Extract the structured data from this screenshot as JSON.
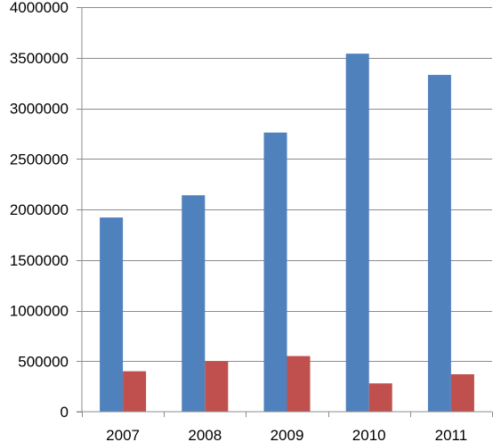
{
  "chart_data": {
    "type": "bar",
    "categories": [
      "2007",
      "2008",
      "2009",
      "2010",
      "2011"
    ],
    "series": [
      {
        "color": "#4F81BD",
        "values": [
          1920000,
          2140000,
          2760000,
          3540000,
          3330000
        ]
      },
      {
        "color": "#C0504D",
        "values": [
          400000,
          500000,
          550000,
          280000,
          370000
        ]
      }
    ],
    "ylim": [
      0,
      4000000
    ],
    "yticks": [
      0,
      500000,
      1000000,
      1500000,
      2000000,
      2500000,
      3000000,
      3500000,
      4000000
    ],
    "ytick_labels": [
      "0",
      "500000",
      "1000000",
      "1500000",
      "2000000",
      "2500000",
      "3000000",
      "3500000",
      "4000000"
    ],
    "grid": true,
    "legend": "none",
    "title": "",
    "xlabel": "",
    "ylabel": ""
  }
}
